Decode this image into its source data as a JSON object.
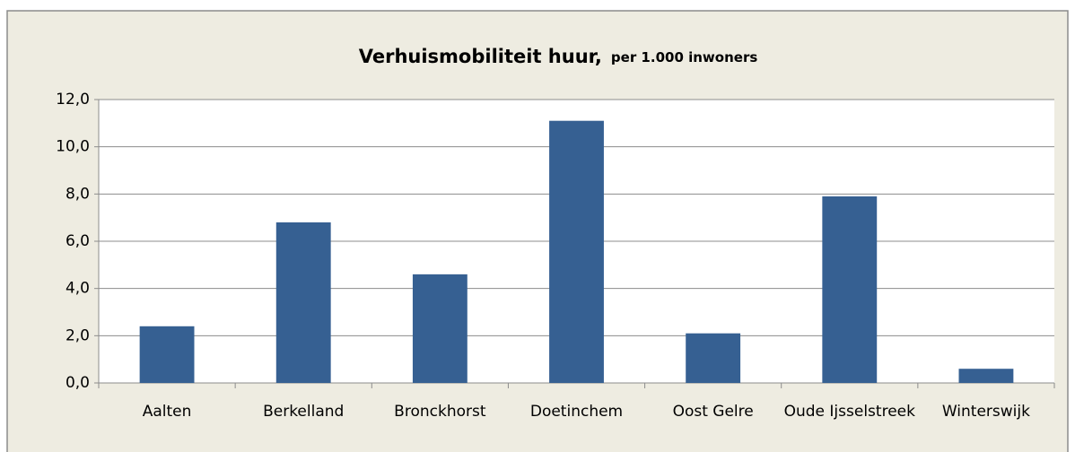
{
  "chart_data": {
    "type": "bar",
    "title": "Verhuismobiliteit huur,",
    "subtitle": "per 1.000 inwoners",
    "categories": [
      "Aalten",
      "Berkelland",
      "Bronckhorst",
      "Doetinchem",
      "Oost Gelre",
      "Oude Ijsselstreek",
      "Winterswijk"
    ],
    "values": [
      2.4,
      6.8,
      4.6,
      11.1,
      2.1,
      7.9,
      0.6
    ],
    "color": "#366092",
    "ylim": [
      0,
      12
    ],
    "yticks": [
      {
        "value": 0,
        "label": "0,0"
      },
      {
        "value": 2,
        "label": "2,0"
      },
      {
        "value": 4,
        "label": "4,0"
      },
      {
        "value": 6,
        "label": "6,0"
      },
      {
        "value": 8,
        "label": "8,0"
      },
      {
        "value": 10,
        "label": "10,0"
      },
      {
        "value": 12,
        "label": "12,0"
      }
    ],
    "grid": true
  }
}
